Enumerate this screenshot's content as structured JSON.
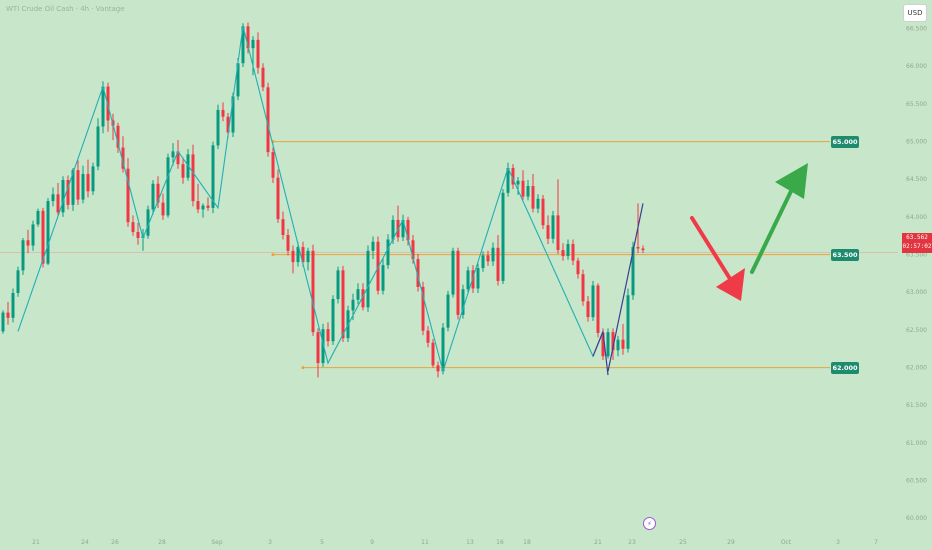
{
  "title": "WTI Crude Oil Cash · 4h · Vantage",
  "currency_button": "USD",
  "current_price": "63.562",
  "countdown": "02:57:02",
  "event_icon": "lightning-icon",
  "chart_data": {
    "type": "candlestick",
    "y_ticks": [
      "60.000",
      "60.500",
      "61.000",
      "61.500",
      "62.000",
      "62.500",
      "63.000",
      "63.500",
      "64.000",
      "64.500",
      "65.000",
      "65.500",
      "66.000",
      "66.500"
    ],
    "x_ticks": [
      "21",
      "24",
      "26",
      "28",
      "Sep",
      "3",
      "5",
      "9",
      "11",
      "13",
      "16",
      "18",
      "21",
      "23",
      "25",
      "29",
      "Oct",
      "3",
      "7"
    ],
    "ylim": [
      59.95,
      66.72
    ],
    "levels": [
      {
        "label": "65.000",
        "value": 65.0,
        "from_index": 54
      },
      {
        "label": "63.500",
        "value": 63.5,
        "from_index": 54
      },
      {
        "label": "62.000",
        "value": 62.0,
        "from_index": 60
      }
    ],
    "candles": [
      {
        "o": 62.48,
        "h": 62.76,
        "l": 62.45,
        "c": 62.73
      },
      {
        "o": 62.73,
        "h": 62.87,
        "l": 62.57,
        "c": 62.66
      },
      {
        "o": 62.66,
        "h": 63.05,
        "l": 62.6,
        "c": 62.99
      },
      {
        "o": 62.99,
        "h": 63.34,
        "l": 62.94,
        "c": 63.29
      },
      {
        "o": 63.29,
        "h": 63.72,
        "l": 63.23,
        "c": 63.69
      },
      {
        "o": 63.69,
        "h": 63.83,
        "l": 63.52,
        "c": 63.62
      },
      {
        "o": 63.62,
        "h": 63.95,
        "l": 63.55,
        "c": 63.9
      },
      {
        "o": 63.9,
        "h": 64.11,
        "l": 63.87,
        "c": 64.08
      },
      {
        "o": 64.08,
        "h": 64.12,
        "l": 63.33,
        "c": 63.38
      },
      {
        "o": 63.38,
        "h": 64.25,
        "l": 63.36,
        "c": 64.21
      },
      {
        "o": 64.21,
        "h": 64.39,
        "l": 64.14,
        "c": 64.3
      },
      {
        "o": 64.3,
        "h": 64.45,
        "l": 64.01,
        "c": 64.06
      },
      {
        "o": 64.06,
        "h": 64.54,
        "l": 64.0,
        "c": 64.49
      },
      {
        "o": 64.49,
        "h": 64.55,
        "l": 64.1,
        "c": 64.16
      },
      {
        "o": 64.16,
        "h": 64.65,
        "l": 64.08,
        "c": 64.62
      },
      {
        "o": 64.62,
        "h": 64.75,
        "l": 64.16,
        "c": 64.23
      },
      {
        "o": 64.23,
        "h": 64.68,
        "l": 64.18,
        "c": 64.57
      },
      {
        "o": 64.57,
        "h": 64.76,
        "l": 64.26,
        "c": 64.34
      },
      {
        "o": 64.34,
        "h": 64.72,
        "l": 64.29,
        "c": 64.67
      },
      {
        "o": 64.67,
        "h": 65.31,
        "l": 64.62,
        "c": 65.2
      },
      {
        "o": 65.2,
        "h": 65.8,
        "l": 65.11,
        "c": 65.73
      },
      {
        "o": 65.73,
        "h": 65.78,
        "l": 65.13,
        "c": 65.28
      },
      {
        "o": 65.28,
        "h": 65.37,
        "l": 65.02,
        "c": 65.21
      },
      {
        "o": 65.21,
        "h": 65.25,
        "l": 64.85,
        "c": 64.92
      },
      {
        "o": 64.92,
        "h": 65.07,
        "l": 64.59,
        "c": 64.64
      },
      {
        "o": 64.64,
        "h": 64.78,
        "l": 63.87,
        "c": 63.93
      },
      {
        "o": 63.93,
        "h": 64.02,
        "l": 63.75,
        "c": 63.8
      },
      {
        "o": 63.8,
        "h": 63.92,
        "l": 63.63,
        "c": 63.72
      },
      {
        "o": 63.72,
        "h": 63.84,
        "l": 63.55,
        "c": 63.75
      },
      {
        "o": 63.75,
        "h": 64.15,
        "l": 63.71,
        "c": 64.1
      },
      {
        "o": 64.1,
        "h": 64.49,
        "l": 64.03,
        "c": 64.44
      },
      {
        "o": 64.44,
        "h": 64.54,
        "l": 64.12,
        "c": 64.19
      },
      {
        "o": 64.19,
        "h": 64.31,
        "l": 63.96,
        "c": 64.02
      },
      {
        "o": 64.02,
        "h": 64.84,
        "l": 63.99,
        "c": 64.79
      },
      {
        "o": 64.79,
        "h": 64.98,
        "l": 64.68,
        "c": 64.87
      },
      {
        "o": 64.87,
        "h": 65.02,
        "l": 64.64,
        "c": 64.7
      },
      {
        "o": 64.7,
        "h": 64.79,
        "l": 64.44,
        "c": 64.52
      },
      {
        "o": 64.52,
        "h": 64.9,
        "l": 64.48,
        "c": 64.83
      },
      {
        "o": 64.83,
        "h": 64.96,
        "l": 64.14,
        "c": 64.21
      },
      {
        "o": 64.21,
        "h": 64.44,
        "l": 64.05,
        "c": 64.1
      },
      {
        "o": 64.1,
        "h": 64.18,
        "l": 63.99,
        "c": 64.15
      },
      {
        "o": 64.15,
        "h": 64.26,
        "l": 64.08,
        "c": 64.12
      },
      {
        "o": 64.12,
        "h": 65.0,
        "l": 64.05,
        "c": 64.95
      },
      {
        "o": 64.95,
        "h": 65.49,
        "l": 64.9,
        "c": 65.42
      },
      {
        "o": 65.42,
        "h": 65.52,
        "l": 65.27,
        "c": 65.33
      },
      {
        "o": 65.33,
        "h": 65.38,
        "l": 65.05,
        "c": 65.12
      },
      {
        "o": 65.12,
        "h": 65.65,
        "l": 65.06,
        "c": 65.6
      },
      {
        "o": 65.6,
        "h": 66.11,
        "l": 65.55,
        "c": 66.04
      },
      {
        "o": 66.04,
        "h": 66.57,
        "l": 65.99,
        "c": 66.53
      },
      {
        "o": 66.53,
        "h": 66.58,
        "l": 66.17,
        "c": 66.24
      },
      {
        "o": 66.24,
        "h": 66.4,
        "l": 65.88,
        "c": 66.35
      },
      {
        "o": 66.35,
        "h": 66.45,
        "l": 65.9,
        "c": 65.98
      },
      {
        "o": 65.98,
        "h": 66.04,
        "l": 65.67,
        "c": 65.72
      },
      {
        "o": 65.72,
        "h": 65.78,
        "l": 64.8,
        "c": 64.86
      },
      {
        "o": 64.86,
        "h": 64.92,
        "l": 64.45,
        "c": 64.52
      },
      {
        "o": 64.52,
        "h": 64.63,
        "l": 63.92,
        "c": 63.97
      },
      {
        "o": 63.97,
        "h": 64.07,
        "l": 63.7,
        "c": 63.76
      },
      {
        "o": 63.76,
        "h": 63.84,
        "l": 63.49,
        "c": 63.55
      },
      {
        "o": 63.55,
        "h": 63.62,
        "l": 63.25,
        "c": 63.4
      },
      {
        "o": 63.4,
        "h": 63.66,
        "l": 63.34,
        "c": 63.6
      },
      {
        "o": 63.6,
        "h": 63.67,
        "l": 63.34,
        "c": 63.4
      },
      {
        "o": 63.4,
        "h": 63.59,
        "l": 63.29,
        "c": 63.55
      },
      {
        "o": 63.55,
        "h": 63.63,
        "l": 62.42,
        "c": 62.47
      },
      {
        "o": 62.47,
        "h": 62.52,
        "l": 61.87,
        "c": 62.06
      },
      {
        "o": 62.06,
        "h": 62.58,
        "l": 62.01,
        "c": 62.51
      },
      {
        "o": 62.51,
        "h": 62.6,
        "l": 62.28,
        "c": 62.35
      },
      {
        "o": 62.35,
        "h": 62.96,
        "l": 62.3,
        "c": 62.91
      },
      {
        "o": 62.91,
        "h": 63.34,
        "l": 62.85,
        "c": 63.29
      },
      {
        "o": 63.29,
        "h": 63.35,
        "l": 62.34,
        "c": 62.39
      },
      {
        "o": 62.39,
        "h": 62.82,
        "l": 62.34,
        "c": 62.76
      },
      {
        "o": 62.76,
        "h": 62.98,
        "l": 62.63,
        "c": 62.9
      },
      {
        "o": 62.9,
        "h": 63.12,
        "l": 62.84,
        "c": 63.04
      },
      {
        "o": 63.04,
        "h": 63.12,
        "l": 62.76,
        "c": 62.8
      },
      {
        "o": 62.8,
        "h": 63.62,
        "l": 62.74,
        "c": 63.55
      },
      {
        "o": 63.55,
        "h": 63.74,
        "l": 63.44,
        "c": 63.67
      },
      {
        "o": 63.67,
        "h": 63.74,
        "l": 62.97,
        "c": 63.02
      },
      {
        "o": 63.02,
        "h": 63.45,
        "l": 62.97,
        "c": 63.36
      },
      {
        "o": 63.36,
        "h": 63.77,
        "l": 63.31,
        "c": 63.7
      },
      {
        "o": 63.7,
        "h": 64.02,
        "l": 63.64,
        "c": 63.96
      },
      {
        "o": 63.96,
        "h": 64.15,
        "l": 63.67,
        "c": 63.73
      },
      {
        "o": 63.73,
        "h": 64.03,
        "l": 63.68,
        "c": 63.96
      },
      {
        "o": 63.96,
        "h": 64.0,
        "l": 63.62,
        "c": 63.69
      },
      {
        "o": 63.69,
        "h": 63.76,
        "l": 63.38,
        "c": 63.44
      },
      {
        "o": 63.44,
        "h": 63.51,
        "l": 63.01,
        "c": 63.07
      },
      {
        "o": 63.07,
        "h": 63.14,
        "l": 62.43,
        "c": 62.49
      },
      {
        "o": 62.49,
        "h": 62.55,
        "l": 62.27,
        "c": 62.33
      },
      {
        "o": 62.33,
        "h": 62.38,
        "l": 62.0,
        "c": 62.03
      },
      {
        "o": 62.03,
        "h": 62.08,
        "l": 61.87,
        "c": 61.95
      },
      {
        "o": 61.95,
        "h": 62.59,
        "l": 61.91,
        "c": 62.53
      },
      {
        "o": 62.53,
        "h": 63.02,
        "l": 62.48,
        "c": 62.97
      },
      {
        "o": 62.97,
        "h": 63.59,
        "l": 62.93,
        "c": 63.55
      },
      {
        "o": 63.55,
        "h": 63.59,
        "l": 62.64,
        "c": 62.7
      },
      {
        "o": 62.7,
        "h": 63.1,
        "l": 62.65,
        "c": 63.04
      },
      {
        "o": 63.04,
        "h": 63.34,
        "l": 62.98,
        "c": 63.29
      },
      {
        "o": 63.29,
        "h": 63.36,
        "l": 62.99,
        "c": 63.05
      },
      {
        "o": 63.05,
        "h": 63.38,
        "l": 62.99,
        "c": 63.32
      },
      {
        "o": 63.32,
        "h": 63.54,
        "l": 63.27,
        "c": 63.49
      },
      {
        "o": 63.49,
        "h": 63.55,
        "l": 63.35,
        "c": 63.41
      },
      {
        "o": 63.41,
        "h": 63.66,
        "l": 63.35,
        "c": 63.59
      },
      {
        "o": 63.59,
        "h": 63.76,
        "l": 63.09,
        "c": 63.15
      },
      {
        "o": 63.15,
        "h": 64.37,
        "l": 63.11,
        "c": 64.32
      },
      {
        "o": 64.32,
        "h": 64.72,
        "l": 64.27,
        "c": 64.65
      },
      {
        "o": 64.65,
        "h": 64.7,
        "l": 64.37,
        "c": 64.43
      },
      {
        "o": 64.43,
        "h": 64.53,
        "l": 64.29,
        "c": 64.48
      },
      {
        "o": 64.48,
        "h": 64.62,
        "l": 64.23,
        "c": 64.27
      },
      {
        "o": 64.27,
        "h": 64.49,
        "l": 64.22,
        "c": 64.41
      },
      {
        "o": 64.41,
        "h": 64.57,
        "l": 64.06,
        "c": 64.11
      },
      {
        "o": 64.11,
        "h": 64.3,
        "l": 64.05,
        "c": 64.24
      },
      {
        "o": 64.24,
        "h": 64.29,
        "l": 63.84,
        "c": 63.89
      },
      {
        "o": 63.89,
        "h": 64.02,
        "l": 63.64,
        "c": 63.71
      },
      {
        "o": 63.71,
        "h": 64.08,
        "l": 63.65,
        "c": 64.02
      },
      {
        "o": 64.02,
        "h": 64.5,
        "l": 63.51,
        "c": 63.56
      },
      {
        "o": 63.56,
        "h": 63.65,
        "l": 63.42,
        "c": 63.48
      },
      {
        "o": 63.48,
        "h": 63.7,
        "l": 63.43,
        "c": 63.64
      },
      {
        "o": 63.64,
        "h": 63.7,
        "l": 63.36,
        "c": 63.42
      },
      {
        "o": 63.42,
        "h": 63.46,
        "l": 63.18,
        "c": 63.24
      },
      {
        "o": 63.24,
        "h": 63.3,
        "l": 62.82,
        "c": 62.88
      },
      {
        "o": 62.88,
        "h": 62.95,
        "l": 62.61,
        "c": 62.67
      },
      {
        "o": 62.67,
        "h": 63.15,
        "l": 62.62,
        "c": 63.09
      },
      {
        "o": 63.09,
        "h": 63.12,
        "l": 62.4,
        "c": 62.46
      },
      {
        "o": 62.46,
        "h": 62.52,
        "l": 62.1,
        "c": 62.15
      },
      {
        "o": 62.15,
        "h": 62.52,
        "l": 62.12,
        "c": 62.47
      },
      {
        "o": 62.47,
        "h": 62.52,
        "l": 62.1,
        "c": 62.23
      },
      {
        "o": 62.23,
        "h": 62.42,
        "l": 62.15,
        "c": 62.37
      },
      {
        "o": 62.37,
        "h": 62.58,
        "l": 62.17,
        "c": 62.25
      },
      {
        "o": 62.25,
        "h": 63.05,
        "l": 62.2,
        "c": 62.96
      },
      {
        "o": 62.96,
        "h": 63.67,
        "l": 62.9,
        "c": 63.6
      },
      {
        "o": 63.6,
        "h": 64.18,
        "l": 63.52,
        "c": 63.58
      },
      {
        "o": 63.58,
        "h": 63.62,
        "l": 63.52,
        "c": 63.56
      }
    ]
  }
}
